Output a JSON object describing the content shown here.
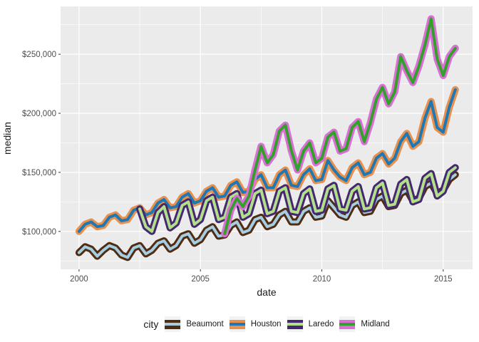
{
  "chart_data": {
    "type": "line",
    "title": "",
    "xlabel": "date",
    "ylabel": "median",
    "legend_title": "city",
    "panel_bg": "#EBEBEB",
    "grid": "#FFFFFF",
    "tick_color": "#333333",
    "xlim": [
      1999.24,
      2016.21
    ],
    "ylim": [
      67900,
      290500
    ],
    "x_ticks": [
      {
        "v": 2000,
        "label": "2000"
      },
      {
        "v": 2005,
        "label": "2005"
      },
      {
        "v": 2010,
        "label": "2010"
      },
      {
        "v": 2015,
        "label": "2015"
      }
    ],
    "x_minor": [
      2002.5,
      2007.5,
      2012.5
    ],
    "y_ticks": [
      {
        "v": 100000,
        "label": "$100,000"
      },
      {
        "v": 150000,
        "label": "$150,000"
      },
      {
        "v": 200000,
        "label": "$200,000"
      },
      {
        "v": 250000,
        "label": "$250,000"
      }
    ],
    "y_minor": [
      75000,
      125000,
      175000,
      225000,
      275000
    ],
    "values_unit": "USD thousands (median sale price)",
    "x_unit": "decimal year, quarterly samples",
    "series": [
      {
        "name": "Beaumont",
        "core": "#A6CEE3",
        "border": "#4F2C12",
        "start": 2000.0,
        "step": 0.25,
        "values": [
          82,
          87,
          85,
          79,
          84,
          88,
          86,
          80,
          78,
          86,
          88,
          81,
          84,
          90,
          92,
          85,
          88,
          96,
          98,
          90,
          93,
          101,
          104,
          96,
          97,
          105,
          108,
          99,
          101,
          110,
          112,
          104,
          106,
          114,
          117,
          108,
          108,
          117,
          120,
          112,
          113,
          126,
          120,
          114,
          112,
          122,
          125,
          116,
          117,
          127,
          130,
          121,
          122,
          132,
          135,
          126,
          128,
          138,
          141,
          132,
          135,
          144,
          148
        ]
      },
      {
        "name": "Houston",
        "core": "#1F78B4",
        "border": "#E8914E",
        "start": 2000.0,
        "step": 0.25,
        "values": [
          100,
          106,
          108,
          104,
          105,
          112,
          114,
          109,
          110,
          118,
          120,
          114,
          116,
          124,
          127,
          120,
          121,
          129,
          132,
          124,
          126,
          134,
          137,
          129,
          130,
          139,
          142,
          133,
          134,
          144,
          148,
          137,
          137,
          148,
          152,
          139,
          138,
          148,
          153,
          143,
          144,
          160,
          152,
          146,
          143,
          154,
          158,
          148,
          150,
          162,
          166,
          157,
          162,
          176,
          183,
          172,
          176,
          196,
          210,
          188,
          184,
          205,
          220
        ]
      },
      {
        "name": "Laredo",
        "core": "#B2DF8A",
        "border": "#452870",
        "start": 2002.5,
        "step": 0.25,
        "values": [
          119,
          104,
          100,
          116,
          121,
          103,
          107,
          122,
          125,
          106,
          110,
          126,
          129,
          110,
          112,
          129,
          132,
          112,
          115,
          132,
          135,
          115,
          117,
          134,
          137,
          117,
          116,
          132,
          136,
          117,
          118,
          136,
          139,
          119,
          118,
          134,
          138,
          119,
          120,
          137,
          141,
          122,
          123,
          140,
          144,
          125,
          127,
          145,
          149,
          130,
          134,
          150,
          154
        ]
      },
      {
        "name": "Midland",
        "core": "#33A02C",
        "border": "#DA70D6",
        "start": 2006.0,
        "step": 0.25,
        "values": [
          98,
          118,
          128,
          121,
          130,
          152,
          172,
          158,
          165,
          185,
          190,
          168,
          152,
          168,
          175,
          158,
          162,
          180,
          184,
          168,
          170,
          188,
          193,
          176,
          192,
          212,
          222,
          208,
          218,
          248,
          236,
          226,
          240,
          258,
          280,
          246,
          232,
          248,
          255
        ]
      }
    ]
  }
}
